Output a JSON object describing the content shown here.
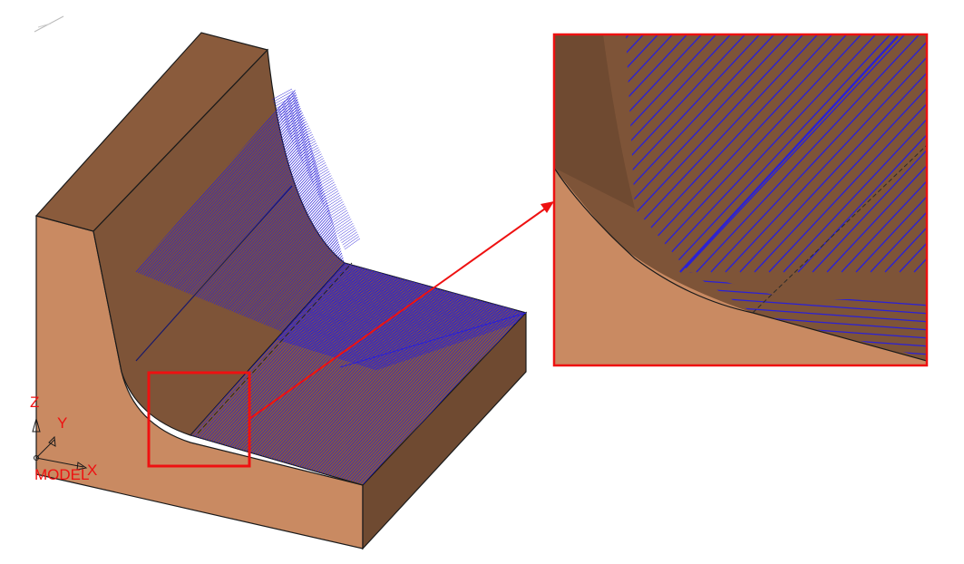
{
  "colors": {
    "background": "#ffffff",
    "face_light": "#c98a62",
    "face_dark": "#7e5438",
    "face_top": "#8a5b3c",
    "edge": "#1a1a1a",
    "toolpath": "#2a20d8",
    "highlight": "#ee1111"
  },
  "axis_triad": {
    "z_label": "Z",
    "y_label": "Y",
    "x_label": "X",
    "model_label": "MODEL"
  },
  "icons": {
    "triad": "axis-triad-icon",
    "zoom_box": "zoom-region-box",
    "callout_arrow": "callout-arrow"
  }
}
